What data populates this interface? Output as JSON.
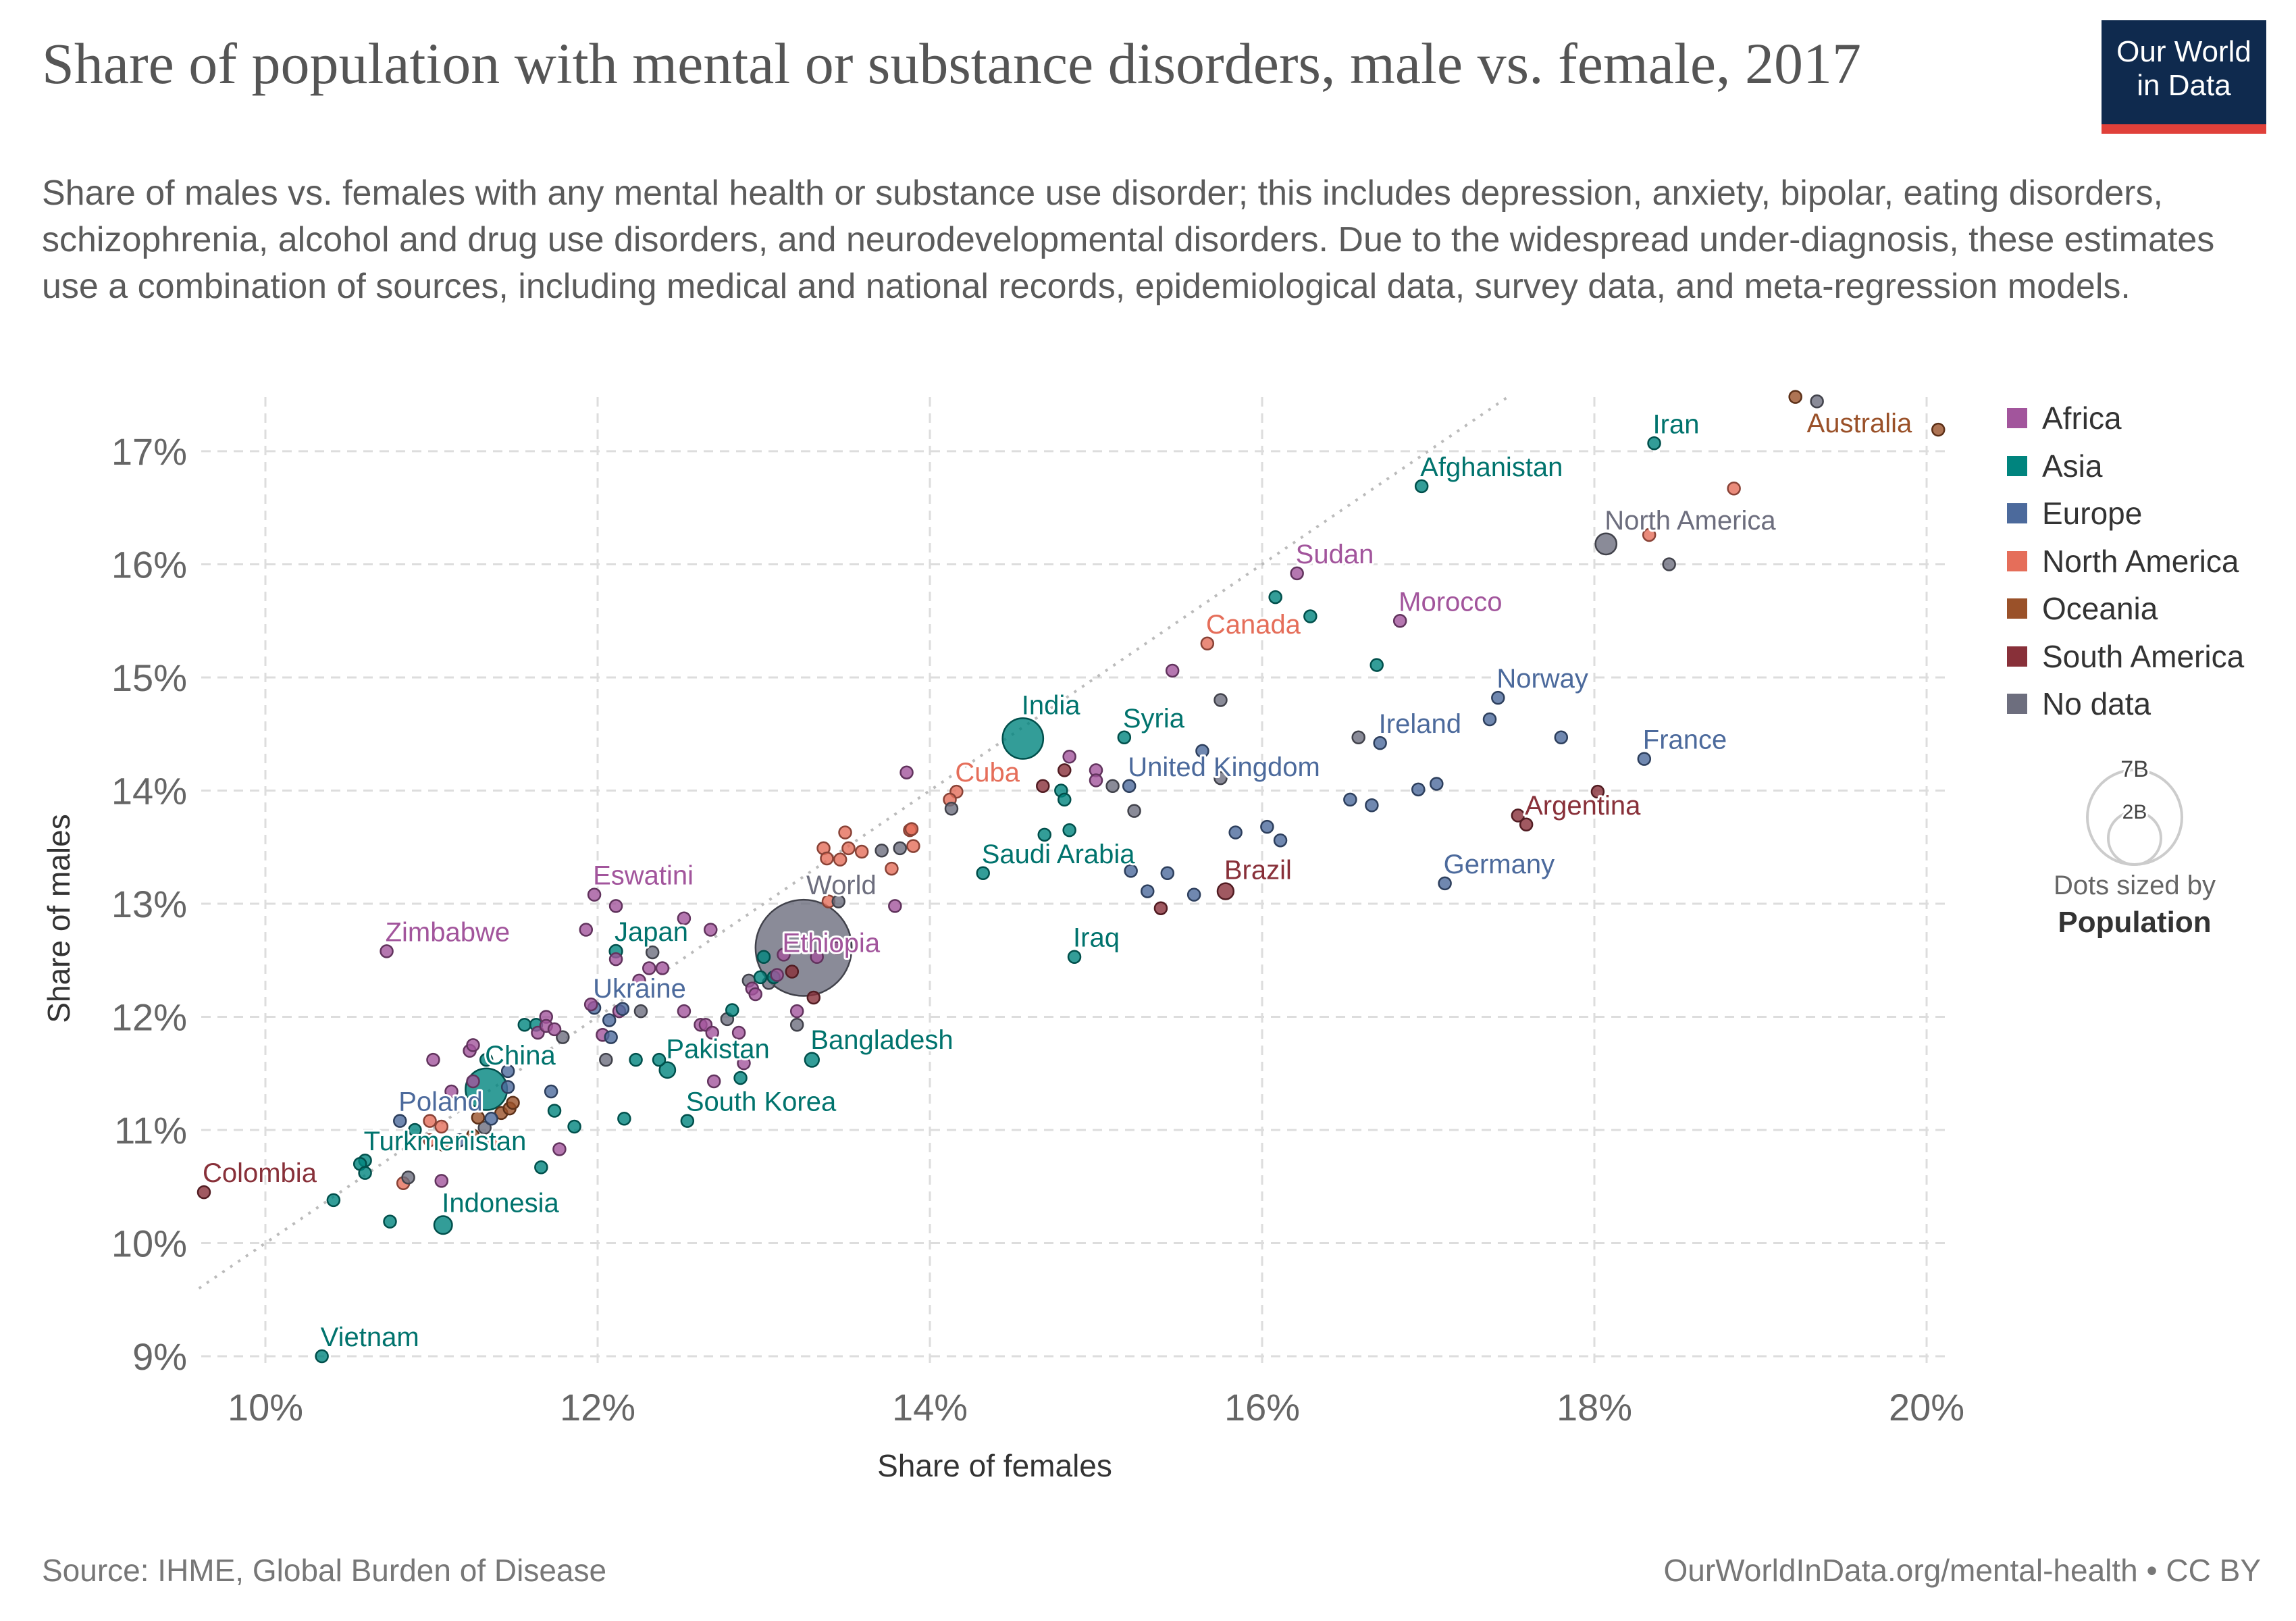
{
  "header": {
    "title": "Share of population with mental or substance disorders, male vs. female, 2017",
    "subtitle": "Share of males vs. females with any mental health or substance use disorder; this includes depression, anxiety, bipolar, eating disorders, schizophrenia, alcohol and drug use disorders, and neurodevelopmental disorders. Due to the widespread under-diagnosis, these estimates use a combination of sources, including medical and national records, epidemiological data, survey data, and meta-regression models.",
    "logo_line1": "Our World",
    "logo_line2": "in Data"
  },
  "footer": {
    "source": "Source: IHME, Global Burden of Disease",
    "license": "OurWorldInData.org/mental-health • CC BY"
  },
  "size_legend": {
    "big": "7B",
    "small": "2B",
    "caption": "Dots sized by",
    "variable": "Population"
  },
  "chart_data": {
    "type": "scatter",
    "title": "Share of population with mental or substance disorders, male vs. female, 2017",
    "xlabel": "Share of females",
    "ylabel": "Share of males",
    "xlim": [
      9.6,
      20.15
    ],
    "ylim": [
      9,
      17.5
    ],
    "xticks": [
      "10%",
      "12%",
      "14%",
      "16%",
      "18%",
      "20%"
    ],
    "xtick_values": [
      10,
      12,
      14,
      16,
      18,
      20
    ],
    "yticks": [
      "9%",
      "10%",
      "11%",
      "12%",
      "13%",
      "14%",
      "15%",
      "16%",
      "17%"
    ],
    "ytick_values": [
      9,
      10,
      11,
      12,
      13,
      14,
      15,
      16,
      17
    ],
    "grid": true,
    "reference_line": "y = x",
    "legend_position": "right",
    "legend": [
      {
        "name": "Africa",
        "color": "#a2559c",
        "label_color": "#a2559c"
      },
      {
        "name": "Asia",
        "color": "#00847e",
        "label_color": "#00736d"
      },
      {
        "name": "Europe",
        "color": "#4c6a9c",
        "label_color": "#4c6a9c"
      },
      {
        "name": "North America",
        "color": "#e56e5a",
        "label_color": "#e56e5a"
      },
      {
        "name": "Oceania",
        "color": "#9a5129",
        "label_color": "#9a5129"
      },
      {
        "name": "South America",
        "color": "#883039",
        "label_color": "#883039"
      },
      {
        "name": "No data",
        "color": "#6d6e7e",
        "label_color": "#6d6e7e"
      }
    ],
    "size_variable": "Population (billions)",
    "points": [
      {
        "x": 18.36,
        "y": 17.07,
        "c": 1,
        "l": "Iran"
      },
      {
        "x": 20.07,
        "y": 17.19,
        "c": 4,
        "l": "Australia"
      },
      {
        "x": 16.96,
        "y": 16.69,
        "c": 1,
        "l": "Afghanistan"
      },
      {
        "x": 18.07,
        "y": 16.18,
        "c": 6,
        "l": "North America",
        "p": 0.36
      },
      {
        "x": 16.21,
        "y": 15.92,
        "c": 0,
        "l": "Sudan"
      },
      {
        "x": 16.83,
        "y": 15.5,
        "c": 0,
        "l": "Morocco"
      },
      {
        "x": 15.67,
        "y": 15.3,
        "c": 3,
        "l": "Canada"
      },
      {
        "x": 14.56,
        "y": 14.46,
        "c": 1,
        "l": "India",
        "p": 1.34
      },
      {
        "x": 15.17,
        "y": 14.47,
        "c": 1,
        "l": "Syria"
      },
      {
        "x": 16.71,
        "y": 14.42,
        "c": 2,
        "l": "Ireland"
      },
      {
        "x": 17.42,
        "y": 14.82,
        "c": 2,
        "l": "Norway"
      },
      {
        "x": 18.3,
        "y": 14.28,
        "c": 2,
        "l": "France"
      },
      {
        "x": 15.2,
        "y": 14.04,
        "c": 2,
        "l": "United Kingdom"
      },
      {
        "x": 14.16,
        "y": 13.99,
        "c": 3,
        "l": "Cuba"
      },
      {
        "x": 17.59,
        "y": 13.7,
        "c": 5,
        "l": "Argentina"
      },
      {
        "x": 14.32,
        "y": 13.27,
        "c": 1,
        "l": "Saudi Arabia"
      },
      {
        "x": 15.78,
        "y": 13.11,
        "c": 5,
        "l": "Brazil",
        "p": 0.21
      },
      {
        "x": 17.1,
        "y": 13.18,
        "c": 2,
        "l": "Germany"
      },
      {
        "x": 14.87,
        "y": 12.53,
        "c": 1,
        "l": "Iraq"
      },
      {
        "x": 11.98,
        "y": 13.08,
        "c": 0,
        "l": "Eswatini"
      },
      {
        "x": 10.73,
        "y": 12.58,
        "c": 0,
        "l": "Zimbabwe"
      },
      {
        "x": 12.11,
        "y": 12.58,
        "c": 1,
        "l": "Japan",
        "p": 0.13
      },
      {
        "x": 13.24,
        "y": 12.61,
        "c": 6,
        "l": "World",
        "p": 7.5
      },
      {
        "x": 13.12,
        "y": 12.55,
        "c": 0,
        "l": "Ethiopia",
        "p": 0.1
      },
      {
        "x": 11.98,
        "y": 12.08,
        "c": 2,
        "l": "Ukraine"
      },
      {
        "x": 11.33,
        "y": 11.36,
        "c": 1,
        "l": "China",
        "p": 1.4
      },
      {
        "x": 12.42,
        "y": 11.53,
        "c": 1,
        "l": "Pakistan",
        "p": 0.2
      },
      {
        "x": 13.29,
        "y": 11.62,
        "c": 1,
        "l": "Bangladesh",
        "p": 0.16
      },
      {
        "x": 12.54,
        "y": 11.08,
        "c": 1,
        "l": "South Korea"
      },
      {
        "x": 10.81,
        "y": 11.08,
        "c": 2,
        "l": "Poland"
      },
      {
        "x": 10.6,
        "y": 10.73,
        "c": 1,
        "l": "Turkmenistan"
      },
      {
        "x": 9.63,
        "y": 10.45,
        "c": 5,
        "l": "Colombia"
      },
      {
        "x": 11.07,
        "y": 10.16,
        "c": 1,
        "l": "Indonesia",
        "p": 0.26
      },
      {
        "x": 10.34,
        "y": 9.0,
        "c": 1,
        "l": "Vietnam",
        "p": 0.095
      },
      {
        "x": 18.84,
        "y": 16.67,
        "c": 3
      },
      {
        "x": 18.33,
        "y": 16.26,
        "c": 3,
        "p": 0.08
      },
      {
        "x": 13.88,
        "y": 13.65,
        "c": 3
      },
      {
        "x": 13.9,
        "y": 13.51,
        "c": 3
      },
      {
        "x": 14.12,
        "y": 13.92,
        "c": 3
      },
      {
        "x": 13.39,
        "y": 13.02,
        "c": 3
      },
      {
        "x": 13.77,
        "y": 13.31,
        "c": 3
      },
      {
        "x": 13.36,
        "y": 13.49,
        "c": 3
      },
      {
        "x": 13.38,
        "y": 13.4,
        "c": 3
      },
      {
        "x": 13.46,
        "y": 13.39,
        "c": 3
      },
      {
        "x": 13.51,
        "y": 13.49,
        "c": 3
      },
      {
        "x": 13.59,
        "y": 13.46,
        "c": 3
      },
      {
        "x": 13.49,
        "y": 13.63,
        "c": 3
      },
      {
        "x": 13.89,
        "y": 13.66,
        "c": 3
      },
      {
        "x": 10.83,
        "y": 10.53,
        "c": 3
      },
      {
        "x": 10.99,
        "y": 11.08,
        "c": 3
      },
      {
        "x": 11.06,
        "y": 11.03,
        "c": 3
      },
      {
        "x": 10.99,
        "y": 10.91,
        "c": 3
      },
      {
        "x": 11.37,
        "y": 10.9,
        "c": 3
      },
      {
        "x": 19.34,
        "y": 17.44,
        "c": 6
      },
      {
        "x": 18.45,
        "y": 16.0,
        "c": 6
      },
      {
        "x": 15.75,
        "y": 14.8,
        "c": 6
      },
      {
        "x": 16.58,
        "y": 14.47,
        "c": 6
      },
      {
        "x": 15.1,
        "y": 14.04,
        "c": 6
      },
      {
        "x": 15.75,
        "y": 14.11,
        "c": 6
      },
      {
        "x": 14.13,
        "y": 13.84,
        "c": 6
      },
      {
        "x": 15.23,
        "y": 13.82,
        "c": 6
      },
      {
        "x": 13.82,
        "y": 13.49,
        "c": 6
      },
      {
        "x": 13.71,
        "y": 13.47,
        "c": 6
      },
      {
        "x": 13.45,
        "y": 13.02,
        "c": 6
      },
      {
        "x": 12.33,
        "y": 12.57,
        "c": 6
      },
      {
        "x": 12.26,
        "y": 12.05,
        "c": 6
      },
      {
        "x": 12.05,
        "y": 11.62,
        "c": 6
      },
      {
        "x": 12.78,
        "y": 11.98,
        "c": 6
      },
      {
        "x": 12.91,
        "y": 12.32,
        "c": 6
      },
      {
        "x": 13.03,
        "y": 12.3,
        "c": 6
      },
      {
        "x": 13.2,
        "y": 11.93,
        "c": 6
      },
      {
        "x": 10.86,
        "y": 10.58,
        "c": 6
      },
      {
        "x": 11.79,
        "y": 11.82,
        "c": 6
      },
      {
        "x": 11.32,
        "y": 11.02,
        "c": 6
      },
      {
        "x": 19.21,
        "y": 17.48,
        "c": 4
      },
      {
        "x": 11.07,
        "y": 10.87,
        "c": 4
      },
      {
        "x": 11.25,
        "y": 10.95,
        "c": 4
      },
      {
        "x": 11.28,
        "y": 11.11,
        "c": 4
      },
      {
        "x": 11.42,
        "y": 11.15,
        "c": 4
      },
      {
        "x": 11.47,
        "y": 11.19,
        "c": 4
      },
      {
        "x": 11.49,
        "y": 11.24,
        "c": 4
      },
      {
        "x": 16.08,
        "y": 15.71,
        "c": 1
      },
      {
        "x": 16.29,
        "y": 15.54,
        "c": 1
      },
      {
        "x": 16.69,
        "y": 15.11,
        "c": 1
      },
      {
        "x": 14.79,
        "y": 14.0,
        "c": 1
      },
      {
        "x": 14.81,
        "y": 13.92,
        "c": 1
      },
      {
        "x": 14.84,
        "y": 13.65,
        "c": 1
      },
      {
        "x": 14.69,
        "y": 13.61,
        "c": 1
      },
      {
        "x": 10.41,
        "y": 10.38,
        "c": 1
      },
      {
        "x": 10.75,
        "y": 10.19,
        "c": 1
      },
      {
        "x": 10.57,
        "y": 10.7,
        "c": 1
      },
      {
        "x": 10.6,
        "y": 10.62,
        "c": 1
      },
      {
        "x": 10.9,
        "y": 11.0,
        "c": 1
      },
      {
        "x": 11.33,
        "y": 11.62,
        "c": 1
      },
      {
        "x": 11.56,
        "y": 11.93,
        "c": 1
      },
      {
        "x": 11.63,
        "y": 11.93,
        "c": 1
      },
      {
        "x": 11.74,
        "y": 11.17,
        "c": 1
      },
      {
        "x": 11.86,
        "y": 11.03,
        "c": 1
      },
      {
        "x": 11.66,
        "y": 10.67,
        "c": 1
      },
      {
        "x": 12.23,
        "y": 11.62,
        "c": 1
      },
      {
        "x": 12.37,
        "y": 11.62,
        "c": 1
      },
      {
        "x": 12.81,
        "y": 12.06,
        "c": 1
      },
      {
        "x": 12.86,
        "y": 11.46,
        "c": 1
      },
      {
        "x": 12.16,
        "y": 11.1,
        "c": 1
      },
      {
        "x": 12.98,
        "y": 12.35,
        "c": 1
      },
      {
        "x": 13.06,
        "y": 12.35,
        "c": 1
      },
      {
        "x": 13.0,
        "y": 12.53,
        "c": 1
      },
      {
        "x": 15.46,
        "y": 15.06,
        "c": 0
      },
      {
        "x": 14.84,
        "y": 14.3,
        "c": 0
      },
      {
        "x": 15.0,
        "y": 14.18,
        "c": 0
      },
      {
        "x": 15.0,
        "y": 14.09,
        "c": 0
      },
      {
        "x": 13.86,
        "y": 14.16,
        "c": 0
      },
      {
        "x": 13.79,
        "y": 12.98,
        "c": 0
      },
      {
        "x": 12.11,
        "y": 12.98,
        "c": 0
      },
      {
        "x": 11.93,
        "y": 12.77,
        "c": 0
      },
      {
        "x": 12.11,
        "y": 12.51,
        "c": 0
      },
      {
        "x": 12.52,
        "y": 12.87,
        "c": 0
      },
      {
        "x": 12.68,
        "y": 12.77,
        "c": 0
      },
      {
        "x": 12.31,
        "y": 12.43,
        "c": 0
      },
      {
        "x": 12.39,
        "y": 12.43,
        "c": 0
      },
      {
        "x": 12.25,
        "y": 12.32,
        "c": 0
      },
      {
        "x": 11.96,
        "y": 12.11,
        "c": 0
      },
      {
        "x": 12.52,
        "y": 12.05,
        "c": 0
      },
      {
        "x": 12.13,
        "y": 12.05,
        "c": 0
      },
      {
        "x": 12.03,
        "y": 11.84,
        "c": 0
      },
      {
        "x": 12.62,
        "y": 11.93,
        "c": 0
      },
      {
        "x": 12.65,
        "y": 11.93,
        "c": 0
      },
      {
        "x": 12.69,
        "y": 11.86,
        "c": 0
      },
      {
        "x": 12.85,
        "y": 11.86,
        "c": 0
      },
      {
        "x": 12.88,
        "y": 11.59,
        "c": 0
      },
      {
        "x": 12.7,
        "y": 11.43,
        "c": 0
      },
      {
        "x": 12.93,
        "y": 12.25,
        "c": 0
      },
      {
        "x": 12.95,
        "y": 12.2,
        "c": 0
      },
      {
        "x": 13.32,
        "y": 12.53,
        "c": 0
      },
      {
        "x": 13.44,
        "y": 12.61,
        "c": 0
      },
      {
        "x": 13.2,
        "y": 12.05,
        "c": 0
      },
      {
        "x": 13.08,
        "y": 12.37,
        "c": 0
      },
      {
        "x": 11.01,
        "y": 11.62,
        "c": 0
      },
      {
        "x": 11.23,
        "y": 11.7,
        "c": 0
      },
      {
        "x": 11.25,
        "y": 11.75,
        "c": 0
      },
      {
        "x": 11.25,
        "y": 11.43,
        "c": 0
      },
      {
        "x": 11.12,
        "y": 11.34,
        "c": 0
      },
      {
        "x": 11.69,
        "y": 12.0,
        "c": 0
      },
      {
        "x": 11.64,
        "y": 11.86,
        "c": 0
      },
      {
        "x": 11.69,
        "y": 11.92,
        "c": 0
      },
      {
        "x": 11.74,
        "y": 11.89,
        "c": 0
      },
      {
        "x": 11.77,
        "y": 10.83,
        "c": 0
      },
      {
        "x": 11.06,
        "y": 10.55,
        "c": 0
      },
      {
        "x": 17.37,
        "y": 14.63,
        "c": 2
      },
      {
        "x": 17.8,
        "y": 14.47,
        "c": 2
      },
      {
        "x": 15.64,
        "y": 14.35,
        "c": 2
      },
      {
        "x": 16.53,
        "y": 13.92,
        "c": 2
      },
      {
        "x": 16.66,
        "y": 13.87,
        "c": 2
      },
      {
        "x": 16.94,
        "y": 14.01,
        "c": 2
      },
      {
        "x": 17.05,
        "y": 14.06,
        "c": 2
      },
      {
        "x": 15.84,
        "y": 13.63,
        "c": 2
      },
      {
        "x": 16.03,
        "y": 13.68,
        "c": 2
      },
      {
        "x": 16.11,
        "y": 13.56,
        "c": 2
      },
      {
        "x": 15.21,
        "y": 13.29,
        "c": 2
      },
      {
        "x": 15.43,
        "y": 13.27,
        "c": 2
      },
      {
        "x": 15.31,
        "y": 13.11,
        "c": 2
      },
      {
        "x": 15.59,
        "y": 13.08,
        "c": 2
      },
      {
        "x": 12.15,
        "y": 12.07,
        "c": 2
      },
      {
        "x": 12.07,
        "y": 11.97,
        "c": 2
      },
      {
        "x": 12.08,
        "y": 11.82,
        "c": 2
      },
      {
        "x": 11.17,
        "y": 10.91,
        "c": 2
      },
      {
        "x": 11.72,
        "y": 11.34,
        "c": 2
      },
      {
        "x": 11.36,
        "y": 11.1,
        "c": 2
      },
      {
        "x": 11.46,
        "y": 11.38,
        "c": 2
      },
      {
        "x": 11.46,
        "y": 11.52,
        "c": 2
      },
      {
        "x": 14.81,
        "y": 14.18,
        "c": 5
      },
      {
        "x": 14.68,
        "y": 14.04,
        "c": 5
      },
      {
        "x": 18.02,
        "y": 13.99,
        "c": 5
      },
      {
        "x": 17.54,
        "y": 13.78,
        "c": 5
      },
      {
        "x": 15.39,
        "y": 12.96,
        "c": 5
      },
      {
        "x": 13.17,
        "y": 12.4,
        "c": 5
      },
      {
        "x": 13.3,
        "y": 12.17,
        "c": 5
      }
    ]
  }
}
